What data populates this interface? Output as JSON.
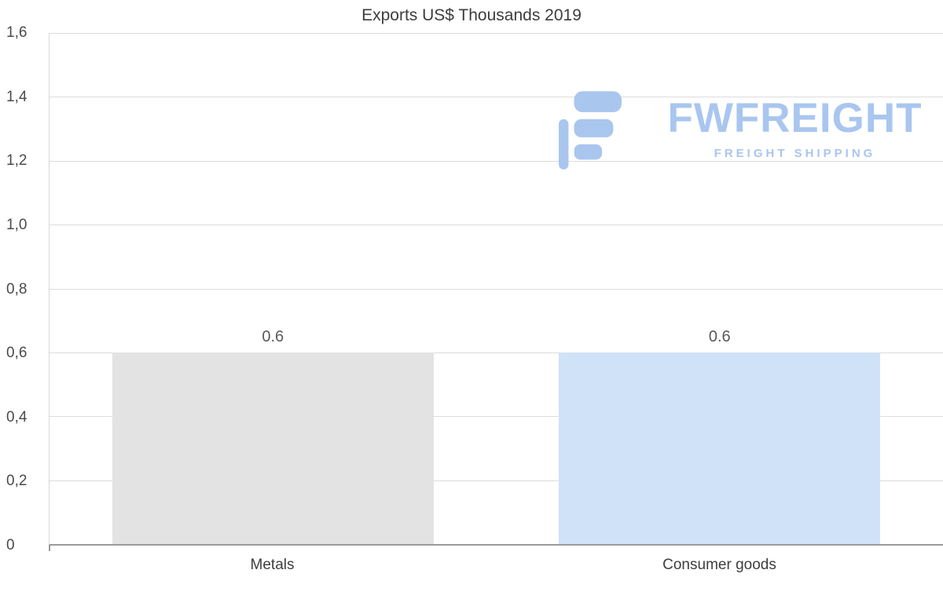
{
  "chart_data": {
    "type": "bar",
    "title": "Exports US$ Thousands 2019",
    "categories": [
      "Metals",
      "Consumer goods"
    ],
    "values": [
      0.6,
      0.6
    ],
    "value_labels": [
      "0.6",
      "0.6"
    ],
    "bar_colors": [
      "#e3e3e3",
      "#cfe2f8"
    ],
    "xlabel": "",
    "ylabel": "",
    "ylim": [
      0,
      1.6
    ],
    "yticks": [
      0,
      0.2,
      0.4,
      0.6,
      0.8,
      1.0,
      1.2,
      1.4,
      1.6
    ],
    "ytick_labels": [
      "0",
      "0,2",
      "0,4",
      "0,6",
      "0,8",
      "1,0",
      "1,2",
      "1,4",
      "1,6"
    ],
    "grid": true,
    "legend": "none"
  },
  "watermark": {
    "brand": "FWFREIGHT",
    "tagline": "FREIGHT SHIPPING",
    "color": "#a9c6ef"
  },
  "colors": {
    "background": "#ffffff",
    "gridline": "#dcdcdc",
    "axis": "#9b9b9b",
    "title_text": "#3d3d3d",
    "tick_text": "#4a4a4a",
    "value_text": "#595959"
  }
}
